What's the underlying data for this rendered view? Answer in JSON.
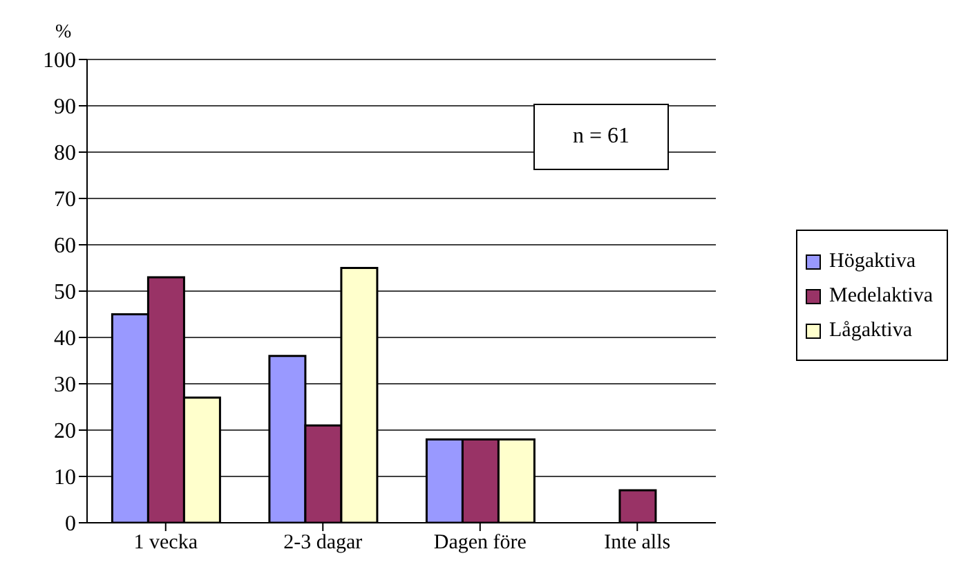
{
  "chart_data": {
    "type": "bar",
    "ylabel": "%",
    "categories": [
      "1 vecka",
      "2-3 dagar",
      "Dagen före",
      "Inte alls"
    ],
    "series": [
      {
        "name": "Högaktiva",
        "color": "#9999ff",
        "values": [
          45,
          36,
          18,
          0
        ]
      },
      {
        "name": "Medelaktiva",
        "color": "#993366",
        "values": [
          53,
          21,
          18,
          7
        ]
      },
      {
        "name": "Lågaktiva",
        "color": "#ffffcc",
        "values": [
          27,
          55,
          18,
          0
        ]
      }
    ],
    "ylim": [
      0,
      100
    ],
    "yticks": [
      0,
      10,
      20,
      30,
      40,
      50,
      60,
      70,
      80,
      90,
      100
    ],
    "grid": "y",
    "legend": "right",
    "annotations": [
      "n = 61"
    ]
  }
}
